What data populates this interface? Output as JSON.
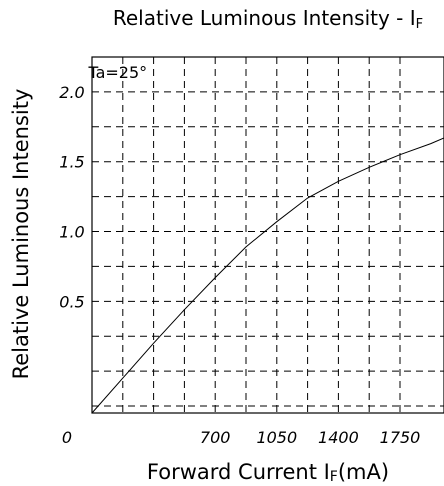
{
  "chart_data": {
    "type": "line",
    "title": "Relative Luminous Intensity - I",
    "title_sub": "F",
    "xlabel": "Forward Current I",
    "xlabel_sub": "F",
    "xlabel_unit": "(mA)",
    "ylabel": "Relative Luminous Intensity",
    "annotation": "Ta=25°",
    "x_origin_label": "0",
    "xlim": [
      0,
      2000
    ],
    "ylim": [
      -0.3,
      2.25
    ],
    "x_ticks": [
      700,
      1050,
      1400,
      1750
    ],
    "x_tick_labels": [
      "700",
      "1050",
      "1400",
      "1750"
    ],
    "y_ticks": [
      0.5,
      1.0,
      1.5,
      2.0
    ],
    "y_tick_labels": [
      "0.5",
      "1.0",
      "1.5",
      "2.0"
    ],
    "grid": true,
    "grid_style": "dashed",
    "x_grid": [
      175,
      350,
      525,
      700,
      875,
      1050,
      1225,
      1400,
      1575,
      1750
    ],
    "y_grid": [
      -0.25,
      0.0,
      0.25,
      0.5,
      0.75,
      1.0,
      1.25,
      1.5,
      1.75,
      2.0
    ],
    "series": [
      {
        "x": [
          0,
          175,
          350,
          525,
          700,
          875,
          1050,
          1225,
          1400,
          1575,
          1750,
          1925,
          2000
        ],
        "y": [
          -0.3,
          -0.05,
          0.2,
          0.44,
          0.67,
          0.89,
          1.07,
          1.24,
          1.36,
          1.46,
          1.55,
          1.63,
          1.67
        ]
      }
    ]
  }
}
